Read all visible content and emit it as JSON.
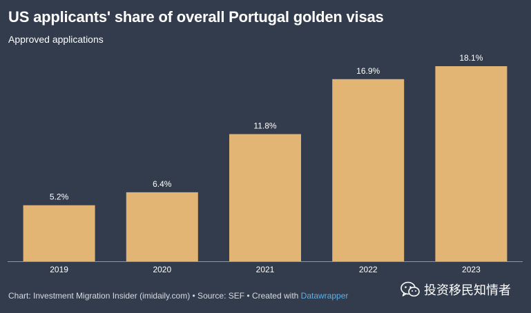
{
  "title": "US applicants' share of overall Portugal golden visas",
  "subtitle": "Approved applications",
  "footer": {
    "prefix": "Chart: Investment Migration Insider (imidaily.com) • Source: SEF • Created with ",
    "link": "Datawrapper"
  },
  "watermark": {
    "text": "投资移民知情者",
    "icon": "wechat-icon"
  },
  "colors": {
    "background": "#333c4c",
    "bar": "#e3b574",
    "text": "#ffffff",
    "baseline": "#8f97a6",
    "link": "#5fb0e6"
  },
  "chart_data": {
    "type": "bar",
    "categories": [
      "2019",
      "2020",
      "2021",
      "2022",
      "2023"
    ],
    "values": [
      5.2,
      6.4,
      11.8,
      16.9,
      18.1
    ],
    "labels": [
      "5.2%",
      "6.4%",
      "11.8%",
      "16.9%",
      "18.1%"
    ],
    "unit": "%",
    "title": "US applicants' share of overall Portugal golden visas",
    "subtitle": "Approved applications",
    "xlabel": "",
    "ylabel": "",
    "ylim": [
      0,
      18.1
    ],
    "grid": false,
    "legend": "none"
  }
}
